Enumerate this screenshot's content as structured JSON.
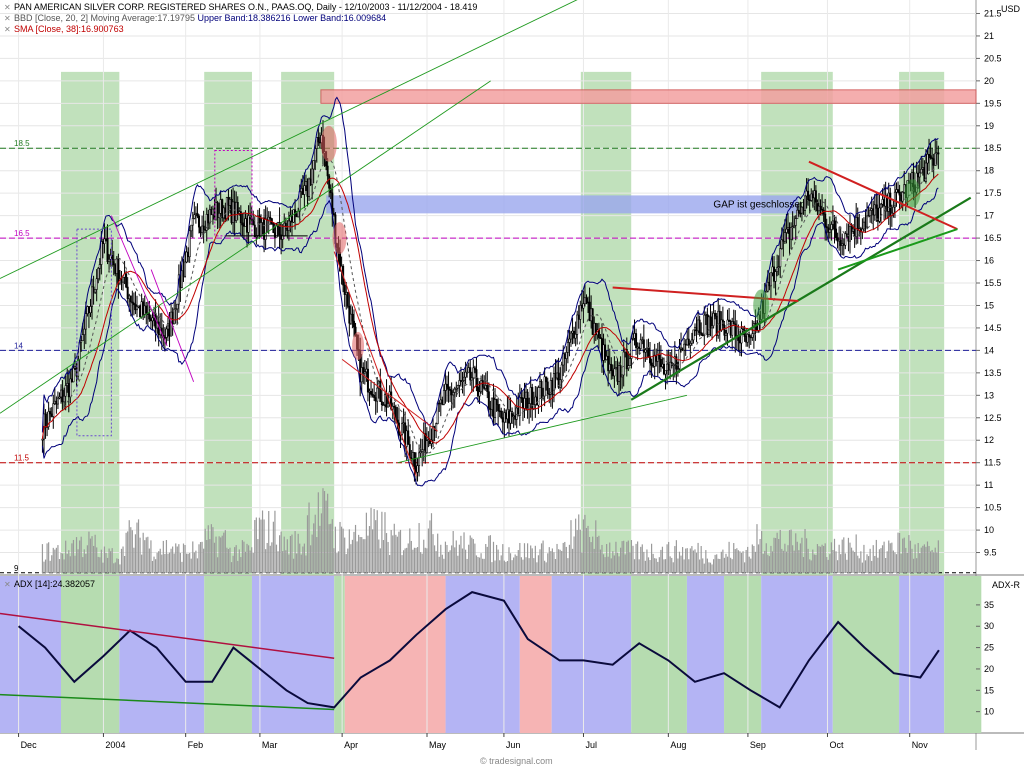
{
  "chart_data": [
    {
      "type": "candlestick",
      "title": "PAN AMERICAN SILVER CORP. REGISTERED SHARES O.N., PAAS.OQ, Daily - 12/10/2003 - 11/12/2004 - 18.419",
      "currency": "USD",
      "x_tick_labels": [
        "Dec",
        "2004",
        "Feb",
        "Mar",
        "Apr",
        "May",
        "Jun",
        "Jul",
        "Aug",
        "Sep",
        "Oct",
        "Nov"
      ],
      "x_tick_dates": [
        "2003-12-01",
        "2004-01-02",
        "2004-02-02",
        "2004-03-01",
        "2004-04-01",
        "2004-05-03",
        "2004-06-01",
        "2004-07-01",
        "2004-08-02",
        "2004-09-01",
        "2004-10-01",
        "2004-11-01"
      ],
      "date_range": [
        "2003-12-10",
        "2004-11-12"
      ],
      "y_tick_labels": [
        "9.5",
        "10",
        "10.5",
        "11",
        "11.5",
        "12",
        "12.5",
        "13",
        "13.5",
        "14",
        "14.5",
        "15",
        "15.5",
        "16",
        "16.5",
        "17",
        "17.5",
        "18",
        "18.5",
        "19",
        "19.5",
        "20",
        "20.5",
        "21",
        "21.5"
      ],
      "ylim": [
        9,
        21.8
      ],
      "price_dates": [
        "2003-12-10",
        "2003-12-22",
        "2004-01-02",
        "2004-01-14",
        "2004-01-26",
        "2004-02-05",
        "2004-02-17",
        "2004-02-27",
        "2004-03-10",
        "2004-03-19",
        "2004-03-24",
        "2004-03-31",
        "2004-04-08",
        "2004-04-19",
        "2004-04-29",
        "2004-05-10",
        "2004-05-20",
        "2004-06-01",
        "2004-06-10",
        "2004-06-22",
        "2004-07-01",
        "2004-07-12",
        "2004-07-22",
        "2004-08-02",
        "2004-08-12",
        "2004-08-23",
        "2004-09-02",
        "2004-09-13",
        "2004-09-24",
        "2004-10-05",
        "2004-10-15",
        "2004-10-26",
        "2004-11-05",
        "2004-11-12"
      ],
      "close_prices": [
        12.3,
        13.4,
        16.4,
        15.0,
        14.3,
        16.8,
        17.2,
        16.8,
        16.6,
        17.6,
        18.9,
        16.0,
        13.5,
        12.8,
        11.5,
        13.0,
        13.4,
        12.4,
        12.9,
        13.4,
        15.2,
        13.3,
        14.3,
        13.4,
        14.6,
        14.6,
        14.1,
        16.2,
        17.5,
        16.5,
        16.9,
        17.3,
        17.9,
        18.42
      ],
      "horizontal_levels": [
        {
          "label": "18.5",
          "value": 18.5,
          "color": "#1f7a1f"
        },
        {
          "label": "16.5",
          "value": 16.5,
          "color": "#c000c0"
        },
        {
          "label": "14",
          "value": 14.0,
          "color": "#1f1f9a"
        },
        {
          "label": "11.5",
          "value": 11.5,
          "color": "#c00000"
        }
      ],
      "gap_zone_label": "GAP ist geschlossen!",
      "gap_zone_range": [
        17.05,
        17.45
      ],
      "resistance_zone_range": [
        19.5,
        19.8
      ],
      "series": [
        {
          "name": "BBD [Close, 20, 2] Moving Average:17.19795",
          "color": "#555555"
        },
        {
          "name": "Upper Band:18.386216",
          "color": "#00007a"
        },
        {
          "name": "Lower Band:16.009684",
          "color": "#00007a"
        },
        {
          "name": "SMA [Close, 38]:16.900763",
          "color": "#c00000"
        }
      ],
      "volume_relative": [
        0.3,
        0.4,
        0.25,
        0.5,
        0.35,
        0.3,
        0.45,
        0.3,
        0.6,
        0.4,
        0.8,
        0.5,
        0.6,
        0.45,
        0.55,
        0.4,
        0.35,
        0.3,
        0.3,
        0.3,
        0.55,
        0.35,
        0.3,
        0.3,
        0.3,
        0.25,
        0.3,
        0.45,
        0.4,
        0.35,
        0.35,
        0.3,
        0.4,
        0.3
      ],
      "legend": {
        "title_line": "PAN AMERICAN SILVER CORP. REGISTERED SHARES O.N., PAAS.OQ, Daily - 12/10/2003 - 11/12/2004 - 18.419",
        "bb_prefix": "BBD [Close, 20, 2] Moving Average:17.19795",
        "bb_upper": "Upper Band:18.386216",
        "bb_lower": "Lower Band:16.009684",
        "sma": "SMA [Close, 38]:16.900763"
      }
    },
    {
      "type": "line",
      "title": "ADX [14]:24.382057",
      "y_axis_label": "ADX-R",
      "y_tick_labels": [
        "10",
        "15",
        "20",
        "25",
        "30",
        "35"
      ],
      "ylim": [
        5,
        42
      ],
      "adx_dates": [
        "2003-12-01",
        "2003-12-11",
        "2003-12-22",
        "2004-01-02",
        "2004-01-12",
        "2004-01-22",
        "2004-02-02",
        "2004-02-12",
        "2004-02-20",
        "2004-03-01",
        "2004-03-11",
        "2004-03-19",
        "2004-03-29",
        "2004-04-08",
        "2004-04-19",
        "2004-04-29",
        "2004-05-10",
        "2004-05-20",
        "2004-06-01",
        "2004-06-10",
        "2004-06-22",
        "2004-07-01",
        "2004-07-12",
        "2004-07-22",
        "2004-08-02",
        "2004-08-12",
        "2004-08-23",
        "2004-09-02",
        "2004-09-13",
        "2004-09-24",
        "2004-10-05",
        "2004-10-15",
        "2004-10-26",
        "2004-11-05",
        "2004-11-12"
      ],
      "adx_values": [
        30,
        25,
        17,
        23,
        29,
        25,
        17,
        17,
        25,
        20,
        15,
        12,
        11,
        18,
        22,
        28,
        34,
        38,
        36,
        27,
        22,
        22,
        21,
        26,
        22,
        17,
        19,
        15,
        11,
        22,
        31,
        25,
        19,
        18,
        24.38
      ],
      "series": [
        {
          "name": "ADX [14]:24.382057",
          "color": "#0a0a3c"
        }
      ]
    }
  ],
  "footer": "© tradesignal.com",
  "colors": {
    "green_zone": "#b6dcb0",
    "blue_zone": "#b4b4f4",
    "red_zone": "#f6b4b4",
    "grid": "#e6e6e6"
  }
}
